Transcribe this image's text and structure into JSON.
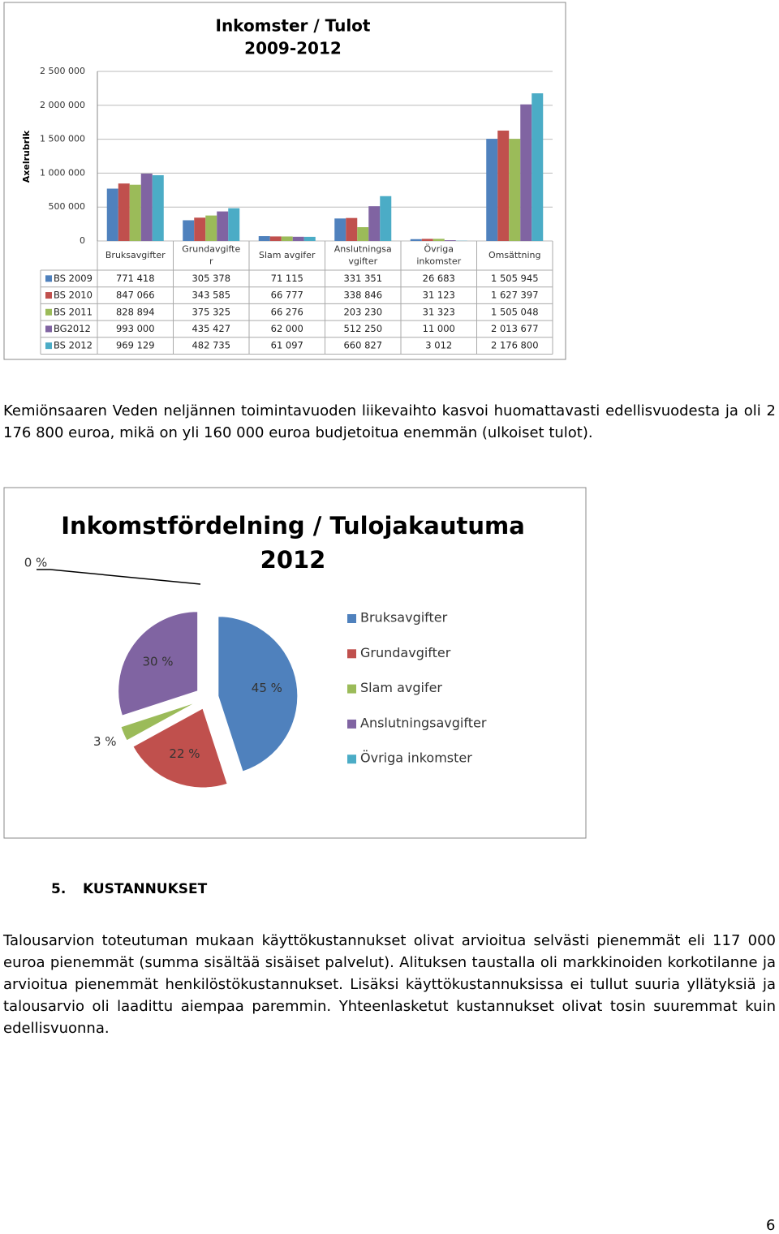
{
  "chart_data": [
    {
      "type": "bar",
      "title": "Inkomster / Tulot",
      "subtitle": "2009-2012",
      "ylabel": "Axelrubrik",
      "categories": [
        "Bruksavgifter",
        "Grundavgifte\nr",
        "Slam avgifer",
        "Anslutningsa\nvgifter",
        "Övriga\ninkomster",
        "Omsättning"
      ],
      "series": [
        {
          "name": "BS 2009",
          "color": "#4f81bd",
          "values": [
            771418,
            305378,
            71115,
            331351,
            26683,
            1505945
          ],
          "value_labels": [
            "771 418",
            "305 378",
            "71 115",
            "331 351",
            "26 683",
            "1 505 945"
          ]
        },
        {
          "name": "BS 2010",
          "color": "#c0504d",
          "values": [
            847066,
            343585,
            66777,
            338846,
            31123,
            1627397
          ],
          "value_labels": [
            "847 066",
            "343 585",
            "66 777",
            "338 846",
            "31 123",
            "1 627 397"
          ]
        },
        {
          "name": "BS 2011",
          "color": "#9bbb59",
          "values": [
            828894,
            375325,
            66276,
            203230,
            31323,
            1505048
          ],
          "value_labels": [
            "828 894",
            "375 325",
            "66 276",
            "203 230",
            "31 323",
            "1 505 048"
          ]
        },
        {
          "name": "BG2012",
          "color": "#8064a2",
          "values": [
            993000,
            435427,
            62000,
            512250,
            11000,
            2013677
          ],
          "value_labels": [
            "993 000",
            "435 427",
            "62 000",
            "512 250",
            "11 000",
            "2 013 677"
          ]
        },
        {
          "name": "BS 2012",
          "color": "#4bacc6",
          "values": [
            969129,
            482735,
            61097,
            660827,
            3012,
            2176800
          ],
          "value_labels": [
            "969 129",
            "482 735",
            "61 097",
            "660 827",
            "3 012",
            "2 176 800"
          ]
        }
      ],
      "ylim": [
        0,
        2500000
      ],
      "yticks": [
        0,
        {
          "value": 500000,
          "label": "500 000"
        },
        {
          "value": 1000000,
          "label": "1 000 000"
        },
        {
          "value": 1500000,
          "label": "1 500 000"
        },
        {
          "value": 2000000,
          "label": "2 000 000"
        },
        {
          "value": 2500000,
          "label": "2 500 000"
        }
      ],
      "grid": true
    },
    {
      "type": "pie",
      "title": "Inkomstfördelning / Tulojakautuma",
      "subtitle": "2012",
      "categories": [
        "Bruksavgifter",
        "Grundavgifter",
        "Slam avgifer",
        "Anslutningsavgifter",
        "Övriga inkomster"
      ],
      "values": [
        45,
        22,
        3,
        30,
        0
      ],
      "value_labels": [
        "45 %",
        "22 %",
        "3 %",
        "30 %",
        "0 %"
      ],
      "colors": [
        "#4f81bd",
        "#c0504d",
        "#9bbb59",
        "#8064a2",
        "#4bacc6"
      ],
      "legend": "right"
    }
  ],
  "paragraphs": [
    "Kemiönsaaren Veden neljännen toimintavuoden liikevaihto kasvoi huomattavasti edellisvuodesta ja oli 2 176 800 euroa, mikä on yli 160 000 euroa budjetoitua enemmän (ulkoiset tulot).",
    "Talousarvion toteutuman mukaan käyttökustannukset olivat arvioitua selvästi pienemmät eli 117 000 euroa pienemmät (summa sisältää sisäiset palvelut). Alituksen taustalla oli markkinoiden korkotilanne ja arvioitua pienemmät henkilöstökustannukset. Lisäksi käyttökustannuksissa ei tullut suuria yllätyksiä ja talousarvio oli laadittu aiempaa paremmin. Yhteenlasketut kustannukset olivat tosin suuremmat kuin edellisvuonna."
  ],
  "section": {
    "number": "5.",
    "title": "KUSTANNUKSET"
  },
  "page_number": "6"
}
